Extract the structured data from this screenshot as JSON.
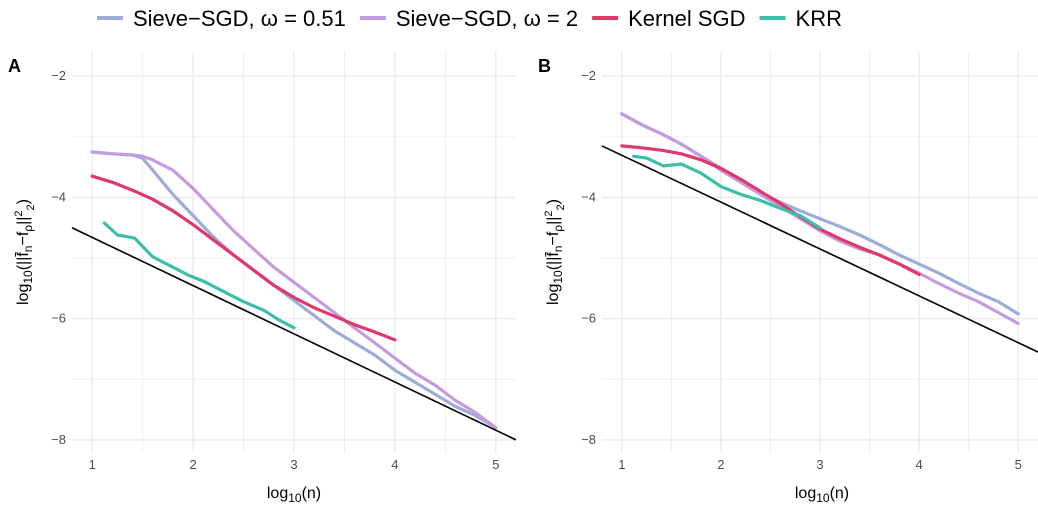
{
  "legend": {
    "items": [
      {
        "label": "Sieve−SGD, ω = 0.51",
        "color": "#9dacd9"
      },
      {
        "label": "Sieve−SGD, ω = 2",
        "color": "#c59be0"
      },
      {
        "label": "Kernel SGD",
        "color": "#e0386b"
      },
      {
        "label": "KRR",
        "color": "#3cbfa9"
      }
    ]
  },
  "chart_data": [
    {
      "type": "line",
      "panel_label": "A",
      "xlabel": "log10(n)",
      "ylabel": "log10(||f̄n−fp||² 2)",
      "xlim": [
        0.8,
        5.2
      ],
      "ylim": [
        -8.2,
        -1.6
      ],
      "xticks": [
        "1",
        "2",
        "3",
        "4",
        "5"
      ],
      "yticks": [
        "−2",
        "−4",
        "−6",
        "−8"
      ],
      "grid": true,
      "reference_line": {
        "x": [
          0.8,
          5.2
        ],
        "y": [
          -4.5,
          -8.0
        ]
      },
      "series": [
        {
          "name": "Sieve−SGD, ω = 0.51",
          "color": "#9dacd9",
          "x": [
            1.0,
            1.2,
            1.4,
            1.5,
            1.6,
            1.8,
            2.0,
            2.2,
            2.4,
            2.6,
            2.8,
            3.0,
            3.2,
            3.4,
            3.6,
            3.8,
            4.0,
            4.2,
            4.4,
            4.6,
            4.8,
            5.0
          ],
          "y": [
            -3.25,
            -3.28,
            -3.3,
            -3.35,
            -3.55,
            -3.95,
            -4.3,
            -4.65,
            -4.95,
            -5.2,
            -5.45,
            -5.7,
            -5.95,
            -6.2,
            -6.4,
            -6.6,
            -6.85,
            -7.05,
            -7.25,
            -7.45,
            -7.6,
            -7.8
          ]
        },
        {
          "name": "Sieve−SGD, ω = 2",
          "color": "#c59be0",
          "x": [
            1.0,
            1.2,
            1.4,
            1.5,
            1.6,
            1.8,
            2.0,
            2.2,
            2.4,
            2.6,
            2.8,
            3.0,
            3.2,
            3.4,
            3.6,
            3.8,
            4.0,
            4.2,
            4.4,
            4.6,
            4.8,
            5.0
          ],
          "y": [
            -3.25,
            -3.28,
            -3.3,
            -3.32,
            -3.38,
            -3.55,
            -3.85,
            -4.2,
            -4.55,
            -4.85,
            -5.15,
            -5.4,
            -5.65,
            -5.9,
            -6.15,
            -6.4,
            -6.65,
            -6.9,
            -7.1,
            -7.35,
            -7.55,
            -7.8
          ]
        },
        {
          "name": "Kernel SGD",
          "color": "#e0386b",
          "x": [
            1.0,
            1.2,
            1.4,
            1.6,
            1.8,
            2.0,
            2.2,
            2.4,
            2.6,
            2.8,
            3.0,
            3.2,
            3.4,
            3.6,
            3.8,
            4.0
          ],
          "y": [
            -3.65,
            -3.75,
            -3.88,
            -4.03,
            -4.22,
            -4.45,
            -4.7,
            -4.95,
            -5.2,
            -5.45,
            -5.65,
            -5.82,
            -5.96,
            -6.1,
            -6.22,
            -6.35
          ]
        },
        {
          "name": "KRR",
          "color": "#3cbfa9",
          "x": [
            1.12,
            1.25,
            1.42,
            1.6,
            1.8,
            1.95,
            2.1,
            2.3,
            2.5,
            2.7,
            2.85,
            3.0
          ],
          "y": [
            -4.42,
            -4.62,
            -4.67,
            -4.98,
            -5.15,
            -5.28,
            -5.38,
            -5.55,
            -5.72,
            -5.86,
            -6.02,
            -6.15
          ]
        }
      ]
    },
    {
      "type": "line",
      "panel_label": "B",
      "xlabel": "log10(n)",
      "ylabel": "log10(||f̄n−fp||² 2)",
      "xlim": [
        0.8,
        5.2
      ],
      "ylim": [
        -8.2,
        -1.6
      ],
      "xticks": [
        "1",
        "2",
        "3",
        "4",
        "5"
      ],
      "yticks": [
        "−2",
        "−4",
        "−6",
        "−8"
      ],
      "grid": true,
      "reference_line": {
        "x": [
          0.8,
          5.2
        ],
        "y": [
          -3.15,
          -6.55
        ]
      },
      "series": [
        {
          "name": "Sieve−SGD, ω = 0.51",
          "color": "#9dacd9",
          "x": [
            1.0,
            1.2,
            1.4,
            1.6,
            1.8,
            2.0,
            2.2,
            2.4,
            2.6,
            2.8,
            3.0,
            3.2,
            3.4,
            3.6,
            3.8,
            4.0,
            4.2,
            4.4,
            4.6,
            4.8,
            5.0
          ],
          "y": [
            -2.62,
            -2.8,
            -2.95,
            -3.12,
            -3.32,
            -3.52,
            -3.72,
            -3.92,
            -4.08,
            -4.22,
            -4.35,
            -4.48,
            -4.62,
            -4.78,
            -4.95,
            -5.1,
            -5.25,
            -5.42,
            -5.58,
            -5.72,
            -5.92
          ]
        },
        {
          "name": "Sieve−SGD, ω = 2",
          "color": "#c59be0",
          "x": [
            1.0,
            1.2,
            1.4,
            1.6,
            1.8,
            2.0,
            2.2,
            2.4,
            2.6,
            2.8,
            3.0,
            3.2,
            3.4,
            3.6,
            3.8,
            4.0,
            4.2,
            4.4,
            4.6,
            4.8,
            5.0
          ],
          "y": [
            -2.62,
            -2.8,
            -2.95,
            -3.12,
            -3.32,
            -3.55,
            -3.75,
            -3.95,
            -4.15,
            -4.35,
            -4.55,
            -4.72,
            -4.85,
            -4.95,
            -5.1,
            -5.25,
            -5.42,
            -5.58,
            -5.72,
            -5.9,
            -6.08
          ]
        },
        {
          "name": "Kernel SGD",
          "color": "#e0386b",
          "x": [
            1.0,
            1.2,
            1.4,
            1.6,
            1.8,
            2.0,
            2.2,
            2.4,
            2.6,
            2.8,
            3.0,
            3.2,
            3.4,
            3.6,
            3.8,
            4.0
          ],
          "y": [
            -3.15,
            -3.18,
            -3.22,
            -3.28,
            -3.38,
            -3.52,
            -3.7,
            -3.9,
            -4.1,
            -4.32,
            -4.52,
            -4.68,
            -4.82,
            -4.95,
            -5.1,
            -5.27
          ]
        },
        {
          "name": "KRR",
          "color": "#3cbfa9",
          "x": [
            1.12,
            1.25,
            1.42,
            1.6,
            1.8,
            2.0,
            2.2,
            2.4,
            2.6,
            2.8,
            3.0
          ],
          "y": [
            -3.32,
            -3.35,
            -3.48,
            -3.45,
            -3.6,
            -3.82,
            -3.95,
            -4.05,
            -4.18,
            -4.3,
            -4.5
          ]
        }
      ]
    }
  ]
}
